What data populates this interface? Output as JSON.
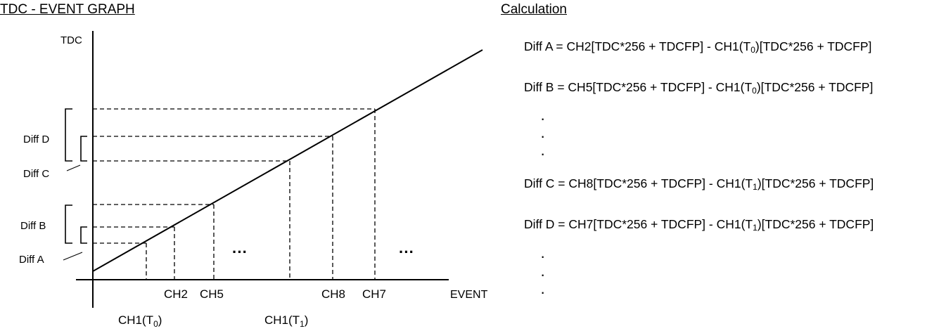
{
  "left_title": "TDC -  EVENT GRAPH",
  "right_title": "Calculation",
  "axes": {
    "y_label": "TDC",
    "x_label": "EVENT"
  },
  "brackets": {
    "diff_d": "Diff D",
    "diff_c": "Diff C",
    "diff_b": "Diff B",
    "diff_a": "Diff A"
  },
  "x_labels": {
    "ch2": "CH2",
    "ch5": "CH5",
    "ch8": "CH8",
    "ch7": "CH7",
    "ch1_t0_prefix": "CH1(T",
    "ch1_t0_sub": "0",
    "ch1_t0_suffix": ")",
    "ch1_t1_prefix": "CH1(T",
    "ch1_t1_sub": "1",
    "ch1_t1_suffix": ")"
  },
  "ellipsis": "···",
  "vdot": "·",
  "formulas": {
    "diff_a": {
      "pre": "Diff A = CH2[TDC*256 + TDCFP] - CH1(T",
      "sub": "0",
      "post": ")[TDC*256 + TDCFP]"
    },
    "diff_b": {
      "pre": "Diff B = CH5[TDC*256 + TDCFP] - CH1(T",
      "sub": "0",
      "post": ")[TDC*256 + TDCFP]"
    },
    "diff_c": {
      "pre": "Diff C = CH8[TDC*256 + TDCFP] - CH1(T",
      "sub": "1",
      "post": ")[TDC*256 + TDCFP]"
    },
    "diff_d": {
      "pre": "Diff D = CH7[TDC*256 + TDCFP] - CH1(T",
      "sub": "1",
      "post": ")[TDC*256 + TDCFP]"
    }
  }
}
